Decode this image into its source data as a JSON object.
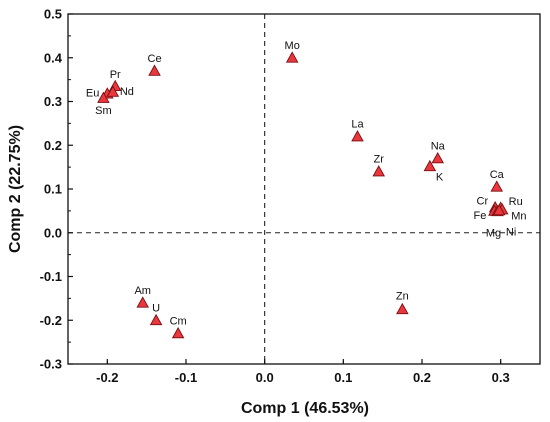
{
  "chart_data": {
    "type": "scatter",
    "title": "",
    "xlabel": "Comp 1 (46.53%)",
    "ylabel": "Comp 2 (22.75%)",
    "xlim": [
      -0.25,
      0.35
    ],
    "ylim": [
      -0.3,
      0.5
    ],
    "x_ticks": [
      "-0.2",
      "-0.1",
      "0.0",
      "0.1",
      "0.2",
      "0.3"
    ],
    "y_ticks": [
      "0.5",
      "0.4",
      "0.3",
      "0.2",
      "0.1",
      "0.0",
      "-0.1",
      "-0.2",
      "-0.3"
    ],
    "x_tick_values": [
      -0.2,
      -0.1,
      0.0,
      0.1,
      0.2,
      0.3
    ],
    "y_tick_values": [
      0.5,
      0.4,
      0.3,
      0.2,
      0.1,
      0.0,
      -0.1,
      -0.2,
      -0.3
    ],
    "reference_lines": {
      "x": 0.0,
      "y": 0.0,
      "style": "dashed"
    },
    "marker": {
      "shape": "triangle",
      "fill": "#e8383d",
      "stroke": "#7a0d10"
    },
    "points": [
      {
        "label": "Mo",
        "x": 0.035,
        "y": 0.4
      },
      {
        "label": "Ce",
        "x": -0.14,
        "y": 0.37
      },
      {
        "label": "Pr",
        "x": -0.19,
        "y": 0.335
      },
      {
        "label": "Eu",
        "x": -0.2,
        "y": 0.318
      },
      {
        "label": "Nd",
        "x": -0.193,
        "y": 0.322
      },
      {
        "label": "Sm",
        "x": -0.205,
        "y": 0.308
      },
      {
        "label": "La",
        "x": 0.118,
        "y": 0.22
      },
      {
        "label": "Na",
        "x": 0.22,
        "y": 0.17
      },
      {
        "label": "Zr",
        "x": 0.145,
        "y": 0.14
      },
      {
        "label": "K",
        "x": 0.21,
        "y": 0.152
      },
      {
        "label": "Ca",
        "x": 0.295,
        "y": 0.105
      },
      {
        "label": "Cr",
        "x": 0.293,
        "y": 0.058
      },
      {
        "label": "Ru",
        "x": 0.3,
        "y": 0.057
      },
      {
        "label": "Fe",
        "x": 0.292,
        "y": 0.05
      },
      {
        "label": "Mn",
        "x": 0.302,
        "y": 0.053
      },
      {
        "label": "Mg",
        "x": 0.296,
        "y": 0.049
      },
      {
        "label": "Ni",
        "x": 0.298,
        "y": 0.051
      },
      {
        "label": "Am",
        "x": -0.155,
        "y": -0.16
      },
      {
        "label": "U",
        "x": -0.138,
        "y": -0.2
      },
      {
        "label": "Cm",
        "x": -0.11,
        "y": -0.23
      },
      {
        "label": "Zn",
        "x": 0.175,
        "y": -0.175
      }
    ]
  }
}
